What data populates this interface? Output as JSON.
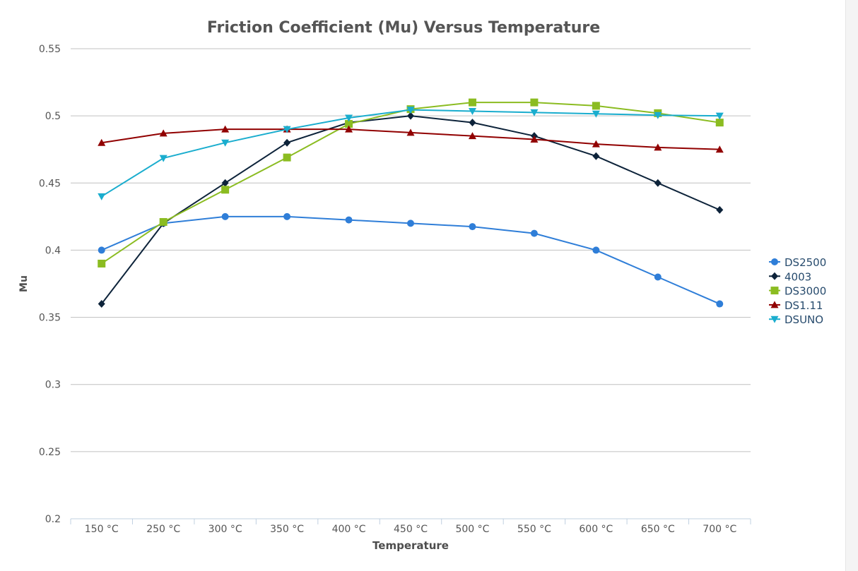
{
  "chart_data": {
    "type": "line",
    "title": "Friction Coefficient (Mu) Versus Temperature",
    "xlabel": "Temperature",
    "ylabel": "Mu",
    "ylim": [
      0.2,
      0.55
    ],
    "yticks": [
      "0.2",
      "0.25",
      "0.3",
      "0.35",
      "0.4",
      "0.45",
      "0.5",
      "0.55"
    ],
    "grid": true,
    "legend_position": "right",
    "categories": [
      "150 °C",
      "250 °C",
      "300 °C",
      "350 °C",
      "400 °C",
      "450 °C",
      "500 °C",
      "550 °C",
      "600 °C",
      "650 °C",
      "700 °C"
    ],
    "series": [
      {
        "name": "DS2500",
        "color": "#2f7ed8",
        "marker": "circle",
        "values": [
          0.4,
          0.42,
          0.425,
          0.425,
          0.4225,
          0.42,
          0.4175,
          0.4125,
          0.4,
          0.38,
          0.36
        ]
      },
      {
        "name": "4003",
        "color": "#0d233a",
        "marker": "diamond",
        "values": [
          0.36,
          0.42,
          0.45,
          0.48,
          0.495,
          0.5,
          0.495,
          0.485,
          0.47,
          0.45,
          0.43
        ]
      },
      {
        "name": "DS3000",
        "color": "#8bbc21",
        "marker": "square",
        "values": [
          0.39,
          0.421,
          0.445,
          0.469,
          0.494,
          0.505,
          0.51,
          0.51,
          0.5075,
          0.502,
          0.495
        ]
      },
      {
        "name": "DS1.11",
        "color": "#910000",
        "marker": "triangle",
        "values": [
          0.48,
          0.487,
          0.49,
          0.49,
          0.49,
          0.4875,
          0.485,
          0.4825,
          0.479,
          0.4765,
          0.475
        ]
      },
      {
        "name": "DSUNO",
        "color": "#1aadce",
        "marker": "triangle-down",
        "values": [
          0.44,
          0.4685,
          0.48,
          0.49,
          0.4985,
          0.5045,
          0.5035,
          0.5025,
          0.5015,
          0.5005,
          0.5
        ]
      }
    ]
  }
}
